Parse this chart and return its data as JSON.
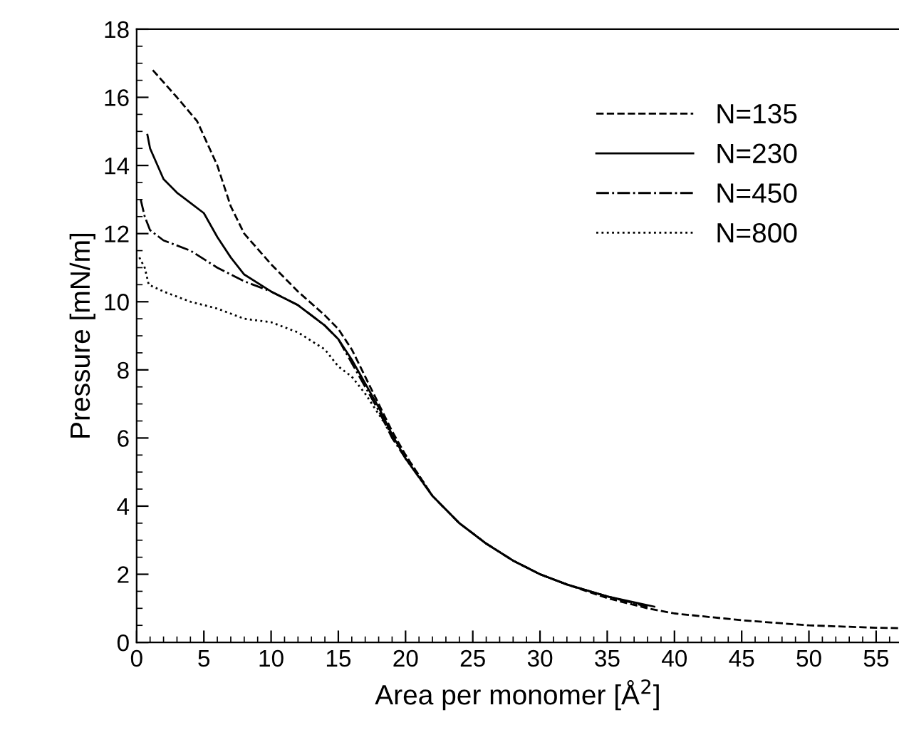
{
  "chart_data": {
    "type": "line",
    "xlabel": "Area per monomer [Å$^{2}$]",
    "ylabel": "Pressure [mN/m]",
    "xlim": [
      0,
      56.7
    ],
    "ylim": [
      0,
      18
    ],
    "xticks": [
      0,
      5,
      10,
      15,
      20,
      25,
      30,
      35,
      40,
      45,
      50,
      55
    ],
    "yticks": [
      0,
      2,
      4,
      6,
      8,
      10,
      12,
      14,
      16,
      18
    ],
    "grid": false,
    "legend": "top right",
    "marker": "none",
    "series": [
      {
        "name": "N=135",
        "color": "#000000",
        "line_style": "dashed",
        "x": [
          1.2,
          3,
          4.5,
          6,
          7,
          8,
          10,
          12,
          14,
          15,
          16,
          17,
          18,
          19,
          20,
          22,
          24,
          26,
          28,
          30,
          32,
          35,
          38,
          40,
          45,
          50,
          55,
          56.7
        ],
        "values": [
          16.8,
          16.0,
          15.3,
          14.0,
          12.8,
          12.0,
          11.1,
          10.3,
          9.6,
          9.2,
          8.6,
          7.8,
          7.0,
          6.2,
          5.5,
          4.3,
          3.5,
          2.9,
          2.4,
          2.0,
          1.7,
          1.3,
          1.0,
          0.85,
          0.65,
          0.5,
          0.43,
          0.42
        ]
      },
      {
        "name": "N=230",
        "color": "#000000",
        "line_style": "solid",
        "x": [
          0.8,
          1,
          2,
          3,
          4,
          5,
          6,
          7,
          8,
          10,
          12,
          14,
          15,
          16,
          17,
          18,
          19,
          20,
          22,
          24,
          26,
          28,
          30,
          32,
          35,
          38.5
        ],
        "values": [
          14.9,
          14.5,
          13.6,
          13.2,
          12.9,
          12.6,
          11.9,
          11.3,
          10.8,
          10.3,
          9.9,
          9.3,
          8.9,
          8.3,
          7.6,
          6.9,
          6.1,
          5.4,
          4.3,
          3.5,
          2.9,
          2.4,
          2.0,
          1.7,
          1.35,
          1.05
        ]
      },
      {
        "name": "N=450",
        "color": "#000000",
        "line_style": "dashdot",
        "x": [
          0.3,
          0.6,
          1,
          2,
          4,
          6,
          8,
          10,
          12,
          14,
          15,
          16,
          17,
          18,
          19,
          20,
          22,
          24,
          26,
          28,
          30,
          32,
          35,
          38
        ],
        "values": [
          13.0,
          12.5,
          12.1,
          11.8,
          11.5,
          11.0,
          10.6,
          10.3,
          9.9,
          9.3,
          8.9,
          8.2,
          7.5,
          6.8,
          6.0,
          5.4,
          4.3,
          3.5,
          2.9,
          2.4,
          2.0,
          1.7,
          1.35,
          1.05
        ]
      },
      {
        "name": "N=800",
        "color": "#000000",
        "line_style": "dotted",
        "x": [
          0.2,
          0.6,
          0.9,
          2,
          4,
          6,
          8,
          10,
          12,
          14,
          15,
          16,
          17,
          18,
          19,
          20,
          22,
          24,
          26,
          28,
          30,
          32,
          35,
          38
        ],
        "values": [
          11.3,
          11.0,
          10.5,
          10.3,
          10.0,
          9.8,
          9.5,
          9.4,
          9.1,
          8.6,
          8.1,
          7.8,
          7.3,
          6.7,
          6.1,
          5.5,
          4.3,
          3.5,
          2.9,
          2.4,
          2.0,
          1.7,
          1.35,
          1.05
        ]
      }
    ]
  }
}
